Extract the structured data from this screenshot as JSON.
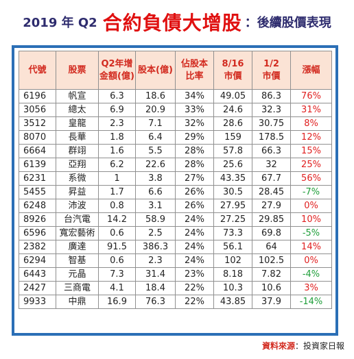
{
  "title": {
    "prefix": "2019 年 Q2",
    "main": "合約負債大增股",
    "suffix": "：後續股價表現"
  },
  "table": {
    "headers": [
      "代號",
      "股票",
      "Q2年增\n金額(億)",
      "股本(億)",
      "佔股本\n比率",
      "8/16\n市價",
      "1/2\n市價",
      "漲幅"
    ],
    "rows": [
      [
        "6196",
        "帆宣",
        "6.3",
        "18.6",
        "34%",
        "49.05",
        "86.3",
        "76%"
      ],
      [
        "3056",
        "總太",
        "6.9",
        "20.9",
        "33%",
        "24.6",
        "32.3",
        "31%"
      ],
      [
        "3512",
        "皇龍",
        "2.3",
        "7.1",
        "32%",
        "28.6",
        "30.75",
        "8%"
      ],
      [
        "8070",
        "長華",
        "1.8",
        "6.4",
        "29%",
        "159",
        "178.5",
        "12%"
      ],
      [
        "6664",
        "群翊",
        "1.6",
        "5.5",
        "28%",
        "57.8",
        "66.3",
        "15%"
      ],
      [
        "6139",
        "亞翔",
        "6.2",
        "22.6",
        "28%",
        "25.6",
        "32",
        "25%"
      ],
      [
        "6231",
        "系微",
        "1",
        "3.8",
        "27%",
        "43.35",
        "67.7",
        "56%"
      ],
      [
        "5455",
        "昇益",
        "1.7",
        "6.6",
        "26%",
        "30.5",
        "28.45",
        "-7%"
      ],
      [
        "6248",
        "沛波",
        "0.8",
        "3.1",
        "26%",
        "27.95",
        "27.9",
        "0%"
      ],
      [
        "8926",
        "台汽電",
        "14.2",
        "58.9",
        "24%",
        "27.25",
        "29.85",
        "10%"
      ],
      [
        "6596",
        "寬宏藝術",
        "0.6",
        "2.5",
        "24%",
        "73.3",
        "69.8",
        "-5%"
      ],
      [
        "2382",
        "廣達",
        "91.5",
        "386.3",
        "24%",
        "56.1",
        "64",
        "14%"
      ],
      [
        "6294",
        "智基",
        "0.6",
        "2.3",
        "24%",
        "102",
        "102.5",
        "0%"
      ],
      [
        "6443",
        "元晶",
        "7.3",
        "31.4",
        "23%",
        "8.18",
        "7.82",
        "-4%"
      ],
      [
        "2427",
        "三商電",
        "4.1",
        "18.4",
        "22%",
        "10.3",
        "10.6",
        "3%"
      ],
      [
        "9933",
        "中鼎",
        "16.9",
        "76.3",
        "22%",
        "43.85",
        "37.9",
        "-14%"
      ]
    ]
  },
  "source": {
    "label": "資料來源",
    "value": "：投資家日報"
  },
  "colors": {
    "title": "#2e2c6e",
    "accent_red": "#e01010",
    "frame_blue": "#2b6fb6",
    "header_bg": "#fbe3d5",
    "gain": "#e02020",
    "loss": "#1f9e3a"
  }
}
